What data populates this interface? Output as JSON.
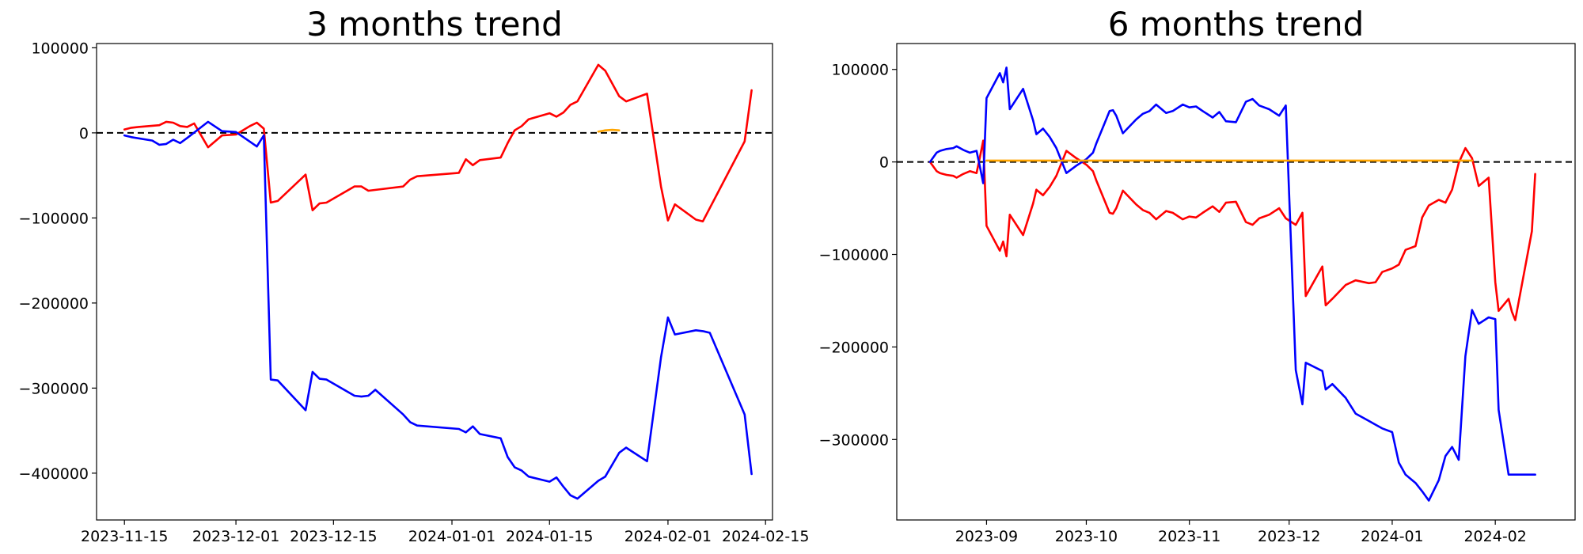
{
  "chart_data": [
    {
      "type": "line",
      "title": "3 months trend",
      "xlabel": "",
      "ylabel": "",
      "x_type": "date",
      "xlim": [
        "2023-11-11",
        "2024-02-16"
      ],
      "ylim": [
        -455000,
        105000
      ],
      "x_ticks": [
        "2023-11-15",
        "2023-12-01",
        "2023-12-15",
        "2024-01-01",
        "2024-01-15",
        "2024-02-01",
        "2024-02-15"
      ],
      "y_ticks": [
        100000,
        0,
        -100000,
        -200000,
        -300000,
        -400000
      ],
      "reference_line": {
        "y": 0,
        "style": "dashed",
        "color": "#000000"
      },
      "grid": false,
      "legend": "none",
      "series": [
        {
          "color": "#ff0000",
          "x": [
            "2023-11-15",
            "2023-11-16",
            "2023-11-17",
            "2023-11-20",
            "2023-11-21",
            "2023-11-22",
            "2023-11-23",
            "2023-11-24",
            "2023-11-25",
            "2023-11-27",
            "2023-11-29",
            "2023-12-01",
            "2023-12-03",
            "2023-12-04",
            "2023-12-05",
            "2023-12-06",
            "2023-12-07",
            "2023-12-11",
            "2023-12-12",
            "2023-12-13",
            "2023-12-14",
            "2023-12-18",
            "2023-12-19",
            "2023-12-20",
            "2023-12-25",
            "2023-12-26",
            "2023-12-27",
            "2024-01-02",
            "2024-01-03",
            "2024-01-04",
            "2024-01-05",
            "2024-01-08",
            "2024-01-09",
            "2024-01-10",
            "2024-01-11",
            "2024-01-12",
            "2024-01-15",
            "2024-01-16",
            "2024-01-17",
            "2024-01-18",
            "2024-01-19",
            "2024-01-22",
            "2024-01-23",
            "2024-01-25",
            "2024-01-26",
            "2024-01-29",
            "2024-01-31",
            "2024-02-01",
            "2024-02-02",
            "2024-02-05",
            "2024-02-06",
            "2024-02-12",
            "2024-02-13"
          ],
          "values": [
            4000,
            6000,
            7000,
            9000,
            13000,
            12000,
            8000,
            7000,
            11000,
            -17000,
            -3000,
            -2000,
            8000,
            12000,
            5000,
            -82000,
            -80000,
            -49000,
            -91000,
            -83000,
            -82000,
            -63000,
            -63000,
            -68000,
            -63000,
            -55000,
            -51000,
            -47000,
            -31000,
            -38000,
            -32000,
            -29000,
            -12000,
            3000,
            8000,
            16000,
            23000,
            19000,
            24000,
            33000,
            37000,
            80000,
            73000,
            43000,
            37000,
            46000,
            -63000,
            -103000,
            -84000,
            -102000,
            -104000,
            -10000,
            50000
          ]
        },
        {
          "color": "#0000ff",
          "x": [
            "2023-11-15",
            "2023-11-16",
            "2023-11-19",
            "2023-11-20",
            "2023-11-21",
            "2023-11-22",
            "2023-11-23",
            "2023-11-24",
            "2023-11-27",
            "2023-11-29",
            "2023-12-01",
            "2023-12-04",
            "2023-12-05",
            "2023-12-06",
            "2023-12-07",
            "2023-12-11",
            "2023-12-12",
            "2023-12-13",
            "2023-12-14",
            "2023-12-18",
            "2023-12-19",
            "2023-12-20",
            "2023-12-21",
            "2023-12-25",
            "2023-12-26",
            "2023-12-27",
            "2024-01-02",
            "2024-01-03",
            "2024-01-04",
            "2024-01-05",
            "2024-01-08",
            "2024-01-09",
            "2024-01-10",
            "2024-01-11",
            "2024-01-12",
            "2024-01-15",
            "2024-01-16",
            "2024-01-17",
            "2024-01-18",
            "2024-01-19",
            "2024-01-22",
            "2024-01-23",
            "2024-01-25",
            "2024-01-26",
            "2024-01-29",
            "2024-01-31",
            "2024-02-01",
            "2024-02-02",
            "2024-02-05",
            "2024-02-06",
            "2024-02-07",
            "2024-02-12",
            "2024-02-13"
          ],
          "values": [
            -3000,
            -5000,
            -9000,
            -14000,
            -13000,
            -8000,
            -12000,
            -6000,
            13000,
            2000,
            1000,
            -16000,
            -3000,
            -290000,
            -291000,
            -326000,
            -281000,
            -289000,
            -290000,
            -309000,
            -310000,
            -309000,
            -302000,
            -331000,
            -340000,
            -344000,
            -348000,
            -352000,
            -345000,
            -354000,
            -359000,
            -381000,
            -393000,
            -397000,
            -404000,
            -410000,
            -405000,
            -416000,
            -426000,
            -430000,
            -409000,
            -404000,
            -376000,
            -370000,
            -386000,
            -264000,
            -217000,
            -237000,
            -232000,
            -233000,
            -235000,
            -331000,
            -401000
          ]
        },
        {
          "color": "#ffa500",
          "x": [
            "2024-01-22",
            "2024-01-23",
            "2024-01-24",
            "2024-01-25"
          ],
          "values": [
            1500,
            3000,
            3500,
            3000
          ]
        }
      ]
    },
    {
      "type": "line",
      "title": "6 months trend",
      "xlabel": "",
      "ylabel": "",
      "x_type": "date",
      "xlim": [
        "2023-08-05",
        "2024-02-25"
      ],
      "ylim": [
        -387000,
        128000
      ],
      "x_ticks": [
        "2023-09",
        "2023-10",
        "2023-11",
        "2023-12",
        "2024-01",
        "2024-02"
      ],
      "y_ticks": [
        100000,
        0,
        -100000,
        -200000,
        -300000
      ],
      "reference_line": {
        "y": 0,
        "style": "dashed",
        "color": "#000000"
      },
      "grid": false,
      "legend": "none",
      "series": [
        {
          "color": "#ff0000",
          "x": [
            "2023-08-15",
            "2023-08-17",
            "2023-08-18",
            "2023-08-20",
            "2023-08-22",
            "2023-08-23",
            "2023-08-25",
            "2023-08-27",
            "2023-08-29",
            "2023-08-30",
            "2023-08-31",
            "2023-09-01",
            "2023-09-05",
            "2023-09-06",
            "2023-09-07",
            "2023-09-08",
            "2023-09-12",
            "2023-09-15",
            "2023-09-16",
            "2023-09-18",
            "2023-09-20",
            "2023-09-22",
            "2023-09-25",
            "2023-09-28",
            "2023-10-01",
            "2023-10-03",
            "2023-10-04",
            "2023-10-08",
            "2023-10-09",
            "2023-10-10",
            "2023-10-12",
            "2023-10-16",
            "2023-10-18",
            "2023-10-20",
            "2023-10-22",
            "2023-10-25",
            "2023-10-27",
            "2023-10-30",
            "2023-11-01",
            "2023-11-03",
            "2023-11-05",
            "2023-11-08",
            "2023-11-10",
            "2023-11-12",
            "2023-11-15",
            "2023-11-18",
            "2023-11-20",
            "2023-11-22",
            "2023-11-25",
            "2023-11-28",
            "2023-11-30",
            "2023-12-03",
            "2023-12-05",
            "2023-12-06",
            "2023-12-11",
            "2023-12-12",
            "2023-12-14",
            "2023-12-18",
            "2023-12-21",
            "2023-12-25",
            "2023-12-27",
            "2023-12-29",
            "2024-01-01",
            "2024-01-03",
            "2024-01-05",
            "2024-01-08",
            "2024-01-10",
            "2024-01-12",
            "2024-01-15",
            "2024-01-17",
            "2024-01-19",
            "2024-01-21",
            "2024-01-23",
            "2024-01-25",
            "2024-01-27",
            "2024-01-30",
            "2024-02-01",
            "2024-02-02",
            "2024-02-05",
            "2024-02-06",
            "2024-02-07",
            "2024-02-12",
            "2024-02-13"
          ],
          "values": [
            0,
            -10000,
            -12000,
            -14000,
            -15000,
            -17000,
            -13000,
            -10000,
            -12000,
            5000,
            23000,
            -69000,
            -96000,
            -86000,
            -102000,
            -57000,
            -79000,
            -45000,
            -30000,
            -36000,
            -27000,
            -15000,
            12000,
            4000,
            -3000,
            -10000,
            -20000,
            -55000,
            -56000,
            -50000,
            -31000,
            -46000,
            -52000,
            -55000,
            -62000,
            -53000,
            -55000,
            -62000,
            -59000,
            -60000,
            -55000,
            -48000,
            -54000,
            -44000,
            -43000,
            -65000,
            -68000,
            -61000,
            -57000,
            -50000,
            -61000,
            -68000,
            -55000,
            -145000,
            -113000,
            -155000,
            -148000,
            -133000,
            -128000,
            -131000,
            -130000,
            -119000,
            -115000,
            -111000,
            -95000,
            -91000,
            -60000,
            -47000,
            -41000,
            -44000,
            -30000,
            -1000,
            15000,
            4000,
            -26000,
            -17000,
            -130000,
            -161000,
            -148000,
            -162000,
            -171000,
            -75000,
            -13000
          ]
        },
        {
          "color": "#0000ff",
          "x": [
            "2023-08-15",
            "2023-08-17",
            "2023-08-18",
            "2023-08-20",
            "2023-08-22",
            "2023-08-23",
            "2023-08-25",
            "2023-08-27",
            "2023-08-29",
            "2023-08-30",
            "2023-08-31",
            "2023-09-01",
            "2023-09-05",
            "2023-09-06",
            "2023-09-07",
            "2023-09-08",
            "2023-09-12",
            "2023-09-15",
            "2023-09-16",
            "2023-09-18",
            "2023-09-20",
            "2023-09-22",
            "2023-09-25",
            "2023-09-28",
            "2023-10-01",
            "2023-10-03",
            "2023-10-04",
            "2023-10-08",
            "2023-10-09",
            "2023-10-10",
            "2023-10-12",
            "2023-10-16",
            "2023-10-18",
            "2023-10-20",
            "2023-10-22",
            "2023-10-25",
            "2023-10-27",
            "2023-10-30",
            "2023-11-01",
            "2023-11-03",
            "2023-11-05",
            "2023-11-08",
            "2023-11-10",
            "2023-11-12",
            "2023-11-15",
            "2023-11-18",
            "2023-11-20",
            "2023-11-22",
            "2023-11-25",
            "2023-11-28",
            "2023-11-30",
            "2023-12-03",
            "2023-12-05",
            "2023-12-06",
            "2023-12-11",
            "2023-12-12",
            "2023-12-14",
            "2023-12-18",
            "2023-12-21",
            "2023-12-25",
            "2023-12-27",
            "2023-12-29",
            "2024-01-01",
            "2024-01-03",
            "2024-01-05",
            "2024-01-08",
            "2024-01-10",
            "2024-01-12",
            "2024-01-15",
            "2024-01-17",
            "2024-01-19",
            "2024-01-21",
            "2024-01-23",
            "2024-01-25",
            "2024-01-27",
            "2024-01-30",
            "2024-02-01",
            "2024-02-02",
            "2024-02-05",
            "2024-02-06",
            "2024-02-07",
            "2024-02-12",
            "2024-02-13"
          ],
          "values": [
            0,
            10000,
            12000,
            14000,
            15000,
            17000,
            13000,
            10000,
            12000,
            -5000,
            -23000,
            69000,
            96000,
            86000,
            102000,
            57000,
            79000,
            45000,
            30000,
            36000,
            27000,
            15000,
            -12000,
            -4000,
            3000,
            10000,
            20000,
            55000,
            56000,
            50000,
            31000,
            46000,
            52000,
            55000,
            62000,
            53000,
            55000,
            62000,
            59000,
            60000,
            55000,
            48000,
            54000,
            44000,
            43000,
            65000,
            68000,
            61000,
            57000,
            50000,
            61000,
            -225000,
            -262000,
            -217000,
            -226000,
            -246000,
            -240000,
            -255000,
            -272000,
            -280000,
            -284000,
            -288000,
            -292000,
            -325000,
            -338000,
            -347000,
            -356000,
            -366000,
            -344000,
            -318000,
            -308000,
            -322000,
            -210000,
            -160000,
            -175000,
            -168000,
            -170000,
            -268000,
            -338000,
            -338000,
            -338000,
            -338000,
            -338000
          ]
        },
        {
          "color": "#ffa500",
          "x": [
            "2023-09-01",
            "2023-09-03",
            "2023-10-15",
            "2023-10-20",
            "2024-01-22",
            "2024-01-25"
          ],
          "values": [
            1500,
            1500,
            1500,
            1500,
            1500,
            1500
          ]
        }
      ]
    }
  ]
}
